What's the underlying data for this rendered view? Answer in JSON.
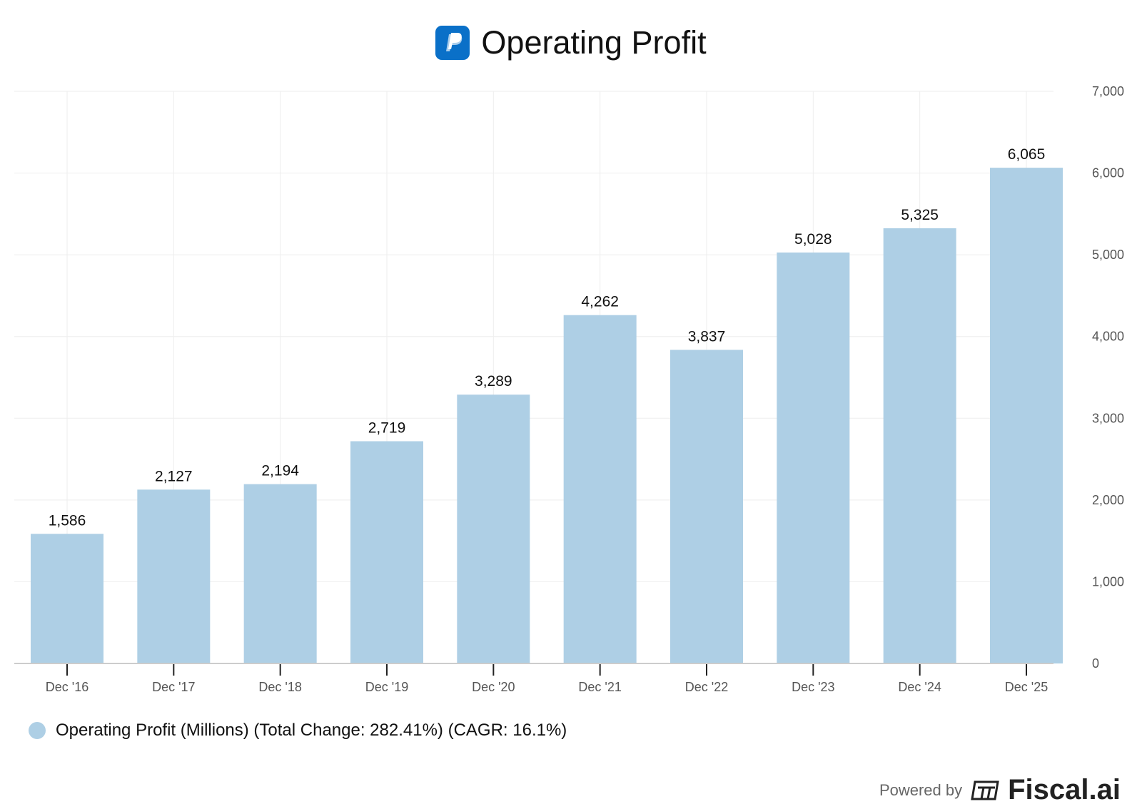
{
  "header": {
    "title": "Operating Profit"
  },
  "colors": {
    "bar": "#aecfe5",
    "grid": "#eeeeee",
    "axis": "#cccccc",
    "logo": "#0a70c8"
  },
  "legend": {
    "text": "Operating Profit (Millions) (Total Change: 282.41%) (CAGR: 16.1%)"
  },
  "footer": {
    "powered_label": "Powered by",
    "brand": "Fiscal.ai"
  },
  "chart_data": {
    "type": "bar",
    "title": "Operating Profit",
    "categories": [
      "Dec '16",
      "Dec '17",
      "Dec '18",
      "Dec '19",
      "Dec '20",
      "Dec '21",
      "Dec '22",
      "Dec '23",
      "Dec '24",
      "Dec '25"
    ],
    "values": [
      1586,
      2127,
      2194,
      2719,
      3289,
      4262,
      3837,
      5028,
      5325,
      6065
    ],
    "value_labels": [
      "1,586",
      "2,127",
      "2,194",
      "2,719",
      "3,289",
      "4,262",
      "3,837",
      "5,028",
      "5,325",
      "6,065"
    ],
    "ylim": [
      0,
      7000
    ],
    "yticks": [
      0,
      1000,
      2000,
      3000,
      4000,
      5000,
      6000,
      7000
    ],
    "ytick_labels": [
      "0",
      "1,000",
      "2,000",
      "3,000",
      "4,000",
      "5,000",
      "6,000",
      "7,000"
    ],
    "y_axis_side": "right",
    "grid": true,
    "series_name": "Operating Profit (Millions)"
  }
}
